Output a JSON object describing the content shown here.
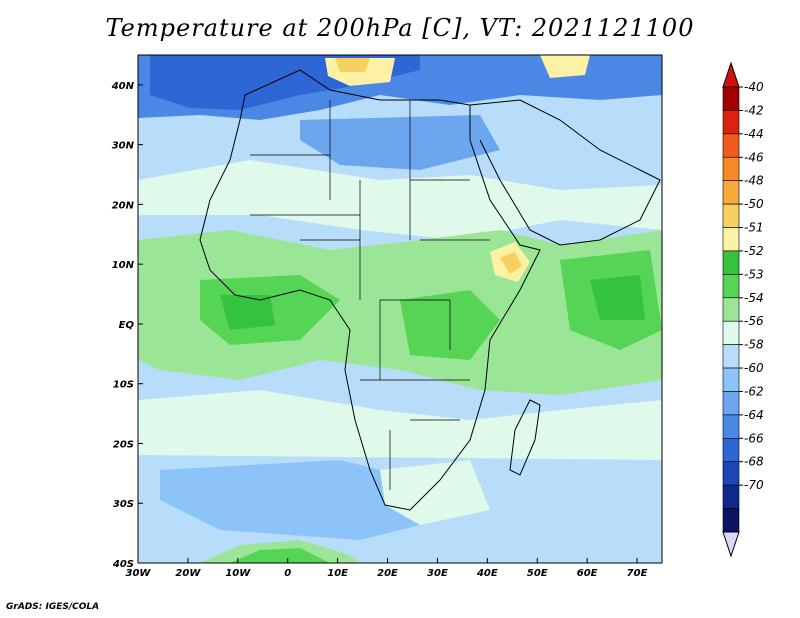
{
  "title": "Temperature at 200hPa [C], VT: 2021121100",
  "credit": "GrADS: IGES/COLA",
  "map": {
    "lon_range": [
      -30,
      75
    ],
    "lat_range": [
      -40,
      45
    ],
    "lon_ticks": [
      {
        "value": -30,
        "label": "30W"
      },
      {
        "value": -20,
        "label": "20W"
      },
      {
        "value": -10,
        "label": "10W"
      },
      {
        "value": 0,
        "label": "0"
      },
      {
        "value": 10,
        "label": "10E"
      },
      {
        "value": 20,
        "label": "20E"
      },
      {
        "value": 30,
        "label": "30E"
      },
      {
        "value": 40,
        "label": "40E"
      },
      {
        "value": 50,
        "label": "50E"
      },
      {
        "value": 60,
        "label": "60E"
      },
      {
        "value": 70,
        "label": "70E"
      }
    ],
    "lat_ticks": [
      {
        "value": 40,
        "label": "40N"
      },
      {
        "value": 30,
        "label": "30N"
      },
      {
        "value": 20,
        "label": "20N"
      },
      {
        "value": 10,
        "label": "10N"
      },
      {
        "value": 0,
        "label": "EQ"
      },
      {
        "value": -10,
        "label": "10S"
      },
      {
        "value": -20,
        "label": "20S"
      },
      {
        "value": -30,
        "label": "30S"
      },
      {
        "value": -40,
        "label": "40S"
      }
    ]
  },
  "colorbar": {
    "labels": [
      "-40",
      "-42",
      "-44",
      "-46",
      "-48",
      "-50",
      "-51",
      "-52",
      "-53",
      "-54",
      "-56",
      "-58",
      "-60",
      "-62",
      "-64",
      "-66",
      "-68",
      "-70"
    ],
    "colors": [
      "#a00000",
      "#e02010",
      "#f05a1e",
      "#f58a26",
      "#f8aa3a",
      "#f8d060",
      "#fbf2a6",
      "#35c23c",
      "#55d455",
      "#9ae696",
      "#dff9ea",
      "#b7ddfb",
      "#8cc3f8",
      "#6ba6ef",
      "#4b88e6",
      "#2e66d6",
      "#1a46b8",
      "#0e2a8a",
      "#0a1460"
    ],
    "top_color": "#d01010",
    "bottom_color": "#d8d8f8"
  }
}
